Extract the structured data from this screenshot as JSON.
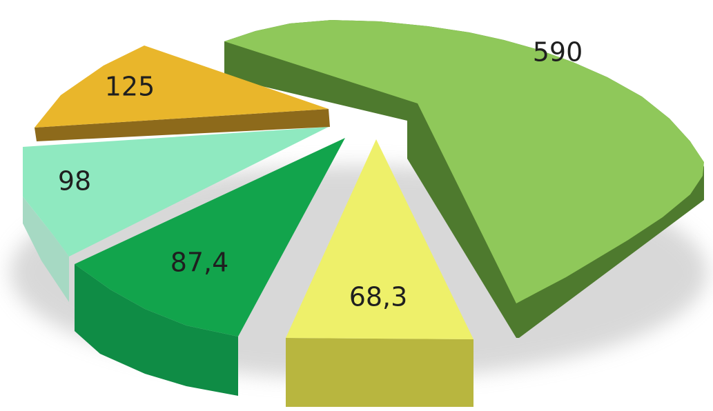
{
  "chart_data": {
    "type": "pie",
    "three_d": true,
    "exploded": true,
    "values": [
      590,
      68.3,
      87.4,
      98,
      125
    ],
    "value_labels": [
      "590",
      "68,3",
      "87,4",
      "98",
      "125"
    ],
    "colors": [
      "#8fc85a",
      "#eef06a",
      "#12a44c",
      "#8fe9c0",
      "#e9b62b"
    ]
  }
}
